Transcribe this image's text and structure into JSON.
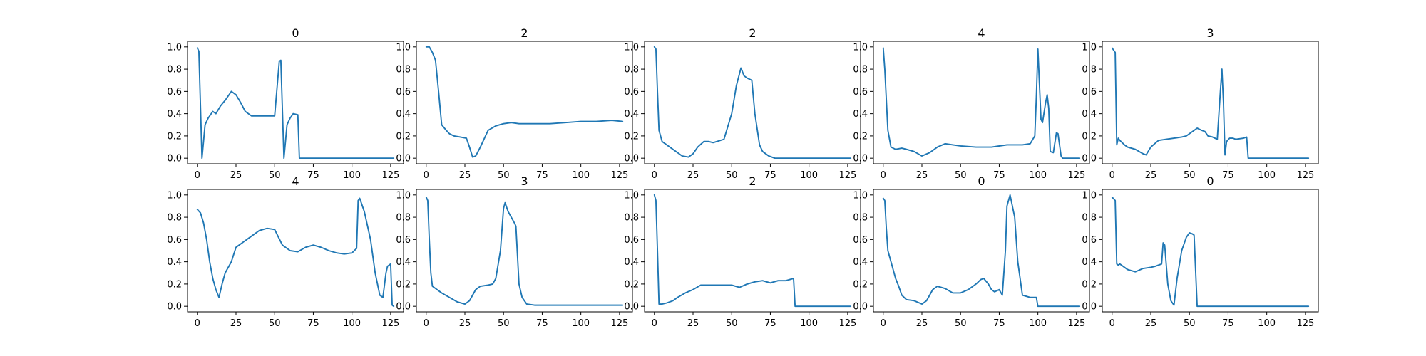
{
  "chart_data": {
    "type": "line",
    "layout": "2x5 grid of small multiples",
    "line_color": "#1f77b4",
    "grid": false,
    "legend": "none",
    "xlim": [
      -6.35,
      133.35
    ],
    "ylim": [
      -0.05,
      1.05
    ],
    "xticks": [
      0,
      25,
      50,
      75,
      100,
      125
    ],
    "yticks": [
      0.0,
      0.2,
      0.4,
      0.6,
      0.8,
      1.0
    ],
    "subplots": [
      {
        "title": "0",
        "x": [
          0,
          1,
          3,
          5,
          7,
          10,
          12,
          15,
          18,
          22,
          25,
          28,
          31,
          35,
          40,
          45,
          50,
          53,
          54,
          56,
          58,
          60,
          62,
          65,
          66,
          70,
          127
        ],
        "y": [
          0.99,
          0.96,
          0.0,
          0.3,
          0.36,
          0.42,
          0.4,
          0.47,
          0.52,
          0.6,
          0.57,
          0.5,
          0.42,
          0.38,
          0.38,
          0.38,
          0.38,
          0.87,
          0.88,
          0.0,
          0.3,
          0.36,
          0.4,
          0.39,
          0.0,
          0.0,
          0.0
        ]
      },
      {
        "title": "2",
        "x": [
          0,
          2,
          4,
          6,
          8,
          10,
          13,
          15,
          18,
          22,
          26,
          28,
          30,
          32,
          35,
          40,
          45,
          50,
          55,
          60,
          70,
          80,
          90,
          100,
          110,
          120,
          127
        ],
        "y": [
          1.0,
          1.0,
          0.95,
          0.88,
          0.6,
          0.3,
          0.25,
          0.22,
          0.2,
          0.19,
          0.18,
          0.1,
          0.01,
          0.02,
          0.1,
          0.25,
          0.29,
          0.31,
          0.32,
          0.31,
          0.31,
          0.31,
          0.32,
          0.33,
          0.33,
          0.34,
          0.33
        ]
      },
      {
        "title": "2",
        "x": [
          0,
          1,
          2,
          3,
          5,
          8,
          12,
          15,
          18,
          22,
          25,
          28,
          32,
          35,
          38,
          45,
          50,
          53,
          56,
          58,
          60,
          63,
          65,
          68,
          70,
          74,
          78,
          85,
          127
        ],
        "y": [
          1.0,
          0.98,
          0.6,
          0.25,
          0.15,
          0.12,
          0.08,
          0.05,
          0.02,
          0.01,
          0.04,
          0.1,
          0.15,
          0.15,
          0.14,
          0.17,
          0.4,
          0.65,
          0.81,
          0.74,
          0.72,
          0.7,
          0.4,
          0.12,
          0.06,
          0.02,
          0.0,
          0.0,
          0.0
        ]
      },
      {
        "title": "4",
        "x": [
          0,
          1,
          3,
          5,
          8,
          12,
          15,
          20,
          25,
          30,
          35,
          40,
          45,
          50,
          60,
          70,
          80,
          90,
          95,
          98,
          99,
          100,
          102,
          103,
          105,
          106,
          107,
          108,
          110,
          112,
          113,
          115,
          116,
          120,
          127
        ],
        "y": [
          0.99,
          0.8,
          0.25,
          0.1,
          0.08,
          0.09,
          0.08,
          0.06,
          0.02,
          0.05,
          0.1,
          0.13,
          0.12,
          0.11,
          0.1,
          0.1,
          0.12,
          0.12,
          0.13,
          0.2,
          0.55,
          0.98,
          0.35,
          0.32,
          0.5,
          0.57,
          0.45,
          0.06,
          0.05,
          0.23,
          0.22,
          0.02,
          0.0,
          0.0,
          0.0
        ]
      },
      {
        "title": "3",
        "x": [
          0,
          2,
          3,
          4,
          5,
          8,
          10,
          15,
          20,
          22,
          25,
          30,
          35,
          40,
          45,
          48,
          50,
          53,
          55,
          58,
          60,
          62,
          65,
          68,
          70,
          71,
          72,
          73,
          74,
          76,
          78,
          80,
          85,
          87,
          88,
          95,
          127
        ],
        "y": [
          0.99,
          0.95,
          0.12,
          0.18,
          0.16,
          0.12,
          0.1,
          0.08,
          0.04,
          0.03,
          0.1,
          0.16,
          0.17,
          0.18,
          0.19,
          0.2,
          0.22,
          0.25,
          0.27,
          0.25,
          0.24,
          0.2,
          0.19,
          0.17,
          0.6,
          0.8,
          0.5,
          0.03,
          0.15,
          0.18,
          0.18,
          0.17,
          0.18,
          0.19,
          0.0,
          0.0,
          0.0
        ]
      },
      {
        "title": "4",
        "x": [
          0,
          2,
          4,
          6,
          8,
          10,
          12,
          14,
          16,
          18,
          22,
          25,
          30,
          35,
          40,
          45,
          50,
          55,
          60,
          65,
          70,
          75,
          80,
          85,
          90,
          95,
          100,
          103,
          104,
          105,
          108,
          112,
          115,
          118,
          120,
          122,
          123,
          125,
          126,
          127
        ],
        "y": [
          0.87,
          0.84,
          0.75,
          0.6,
          0.4,
          0.25,
          0.15,
          0.08,
          0.2,
          0.3,
          0.4,
          0.53,
          0.58,
          0.63,
          0.68,
          0.7,
          0.69,
          0.55,
          0.5,
          0.49,
          0.53,
          0.55,
          0.53,
          0.5,
          0.48,
          0.47,
          0.48,
          0.52,
          0.95,
          0.97,
          0.85,
          0.6,
          0.3,
          0.1,
          0.08,
          0.3,
          0.36,
          0.38,
          0.01,
          0.0
        ]
      },
      {
        "title": "3",
        "x": [
          0,
          1,
          2,
          3,
          4,
          6,
          10,
          15,
          20,
          25,
          28,
          32,
          35,
          40,
          43,
          45,
          48,
          50,
          51,
          53,
          55,
          57,
          58,
          60,
          62,
          65,
          70,
          80,
          127
        ],
        "y": [
          0.98,
          0.95,
          0.6,
          0.3,
          0.18,
          0.16,
          0.12,
          0.08,
          0.04,
          0.02,
          0.05,
          0.15,
          0.18,
          0.19,
          0.2,
          0.25,
          0.5,
          0.88,
          0.93,
          0.85,
          0.8,
          0.75,
          0.72,
          0.2,
          0.08,
          0.02,
          0.01,
          0.01,
          0.01
        ]
      },
      {
        "title": "2",
        "x": [
          0,
          1,
          2,
          3,
          5,
          8,
          12,
          15,
          20,
          25,
          30,
          35,
          40,
          45,
          50,
          55,
          60,
          65,
          70,
          75,
          80,
          85,
          90,
          91,
          95,
          127
        ],
        "y": [
          1.0,
          0.95,
          0.5,
          0.02,
          0.02,
          0.03,
          0.05,
          0.08,
          0.12,
          0.15,
          0.19,
          0.19,
          0.19,
          0.19,
          0.19,
          0.17,
          0.2,
          0.22,
          0.23,
          0.21,
          0.23,
          0.23,
          0.25,
          0.0,
          0.0,
          0.0
        ]
      },
      {
        "title": "0",
        "x": [
          0,
          1,
          2,
          3,
          5,
          8,
          10,
          12,
          15,
          20,
          25,
          28,
          32,
          35,
          40,
          45,
          50,
          55,
          60,
          63,
          65,
          68,
          70,
          72,
          75,
          77,
          79,
          80,
          82,
          85,
          87,
          90,
          95,
          99,
          100,
          127
        ],
        "y": [
          0.97,
          0.95,
          0.7,
          0.5,
          0.4,
          0.25,
          0.18,
          0.1,
          0.06,
          0.05,
          0.02,
          0.05,
          0.15,
          0.18,
          0.16,
          0.12,
          0.12,
          0.15,
          0.2,
          0.24,
          0.25,
          0.2,
          0.15,
          0.13,
          0.15,
          0.1,
          0.5,
          0.9,
          1.0,
          0.8,
          0.4,
          0.1,
          0.08,
          0.08,
          0.0,
          0.0
        ]
      },
      {
        "title": "0",
        "x": [
          0,
          2,
          3,
          4,
          5,
          8,
          10,
          15,
          20,
          25,
          28,
          30,
          32,
          33,
          34,
          36,
          38,
          40,
          42,
          45,
          48,
          50,
          52,
          53,
          55,
          127
        ],
        "y": [
          0.98,
          0.95,
          0.38,
          0.37,
          0.38,
          0.35,
          0.33,
          0.31,
          0.34,
          0.35,
          0.36,
          0.37,
          0.38,
          0.57,
          0.55,
          0.2,
          0.05,
          0.01,
          0.25,
          0.5,
          0.62,
          0.66,
          0.65,
          0.64,
          0.0,
          0.0
        ]
      }
    ]
  }
}
